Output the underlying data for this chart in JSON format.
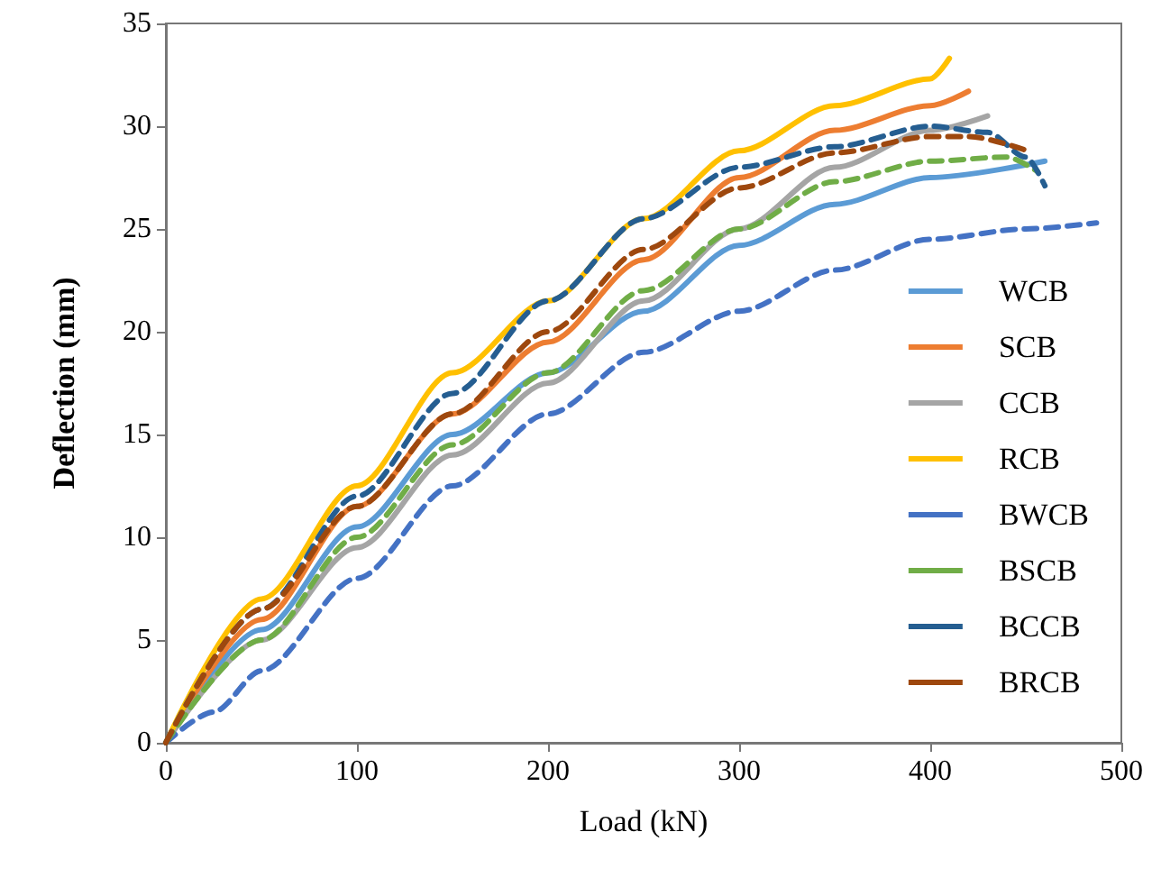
{
  "chart_data": {
    "type": "line",
    "xlabel": "Load (kN)",
    "ylabel": "Deflection (mm)",
    "xlim": [
      0,
      500
    ],
    "xticks": [
      0,
      100,
      200,
      300,
      400,
      500
    ],
    "ylim": [
      0,
      35
    ],
    "yticks": [
      0,
      5,
      10,
      15,
      20,
      25,
      30,
      35
    ],
    "grid": false,
    "legend": "bottom right",
    "marker": "none",
    "series": [
      {
        "name": "WCB",
        "color": "#5b9bd5",
        "line_style": "solid",
        "x": [
          0,
          50,
          100,
          150,
          200,
          250,
          300,
          350,
          400,
          460
        ],
        "values": [
          0,
          5.5,
          10.5,
          15,
          18,
          21,
          24.2,
          26.2,
          27.5,
          28.3
        ]
      },
      {
        "name": "SCB",
        "color": "#ed7d31",
        "line_style": "solid",
        "x": [
          0,
          50,
          100,
          150,
          200,
          250,
          300,
          350,
          400,
          420
        ],
        "values": [
          0,
          6,
          11.5,
          16,
          19.5,
          23.5,
          27.5,
          29.8,
          31,
          31.7
        ]
      },
      {
        "name": "CCB",
        "color": "#a5a5a5",
        "line_style": "solid",
        "x": [
          0,
          50,
          100,
          150,
          200,
          250,
          300,
          350,
          400,
          430
        ],
        "values": [
          0,
          5,
          9.5,
          14,
          17.5,
          21.5,
          25,
          28,
          29.8,
          30.5
        ]
      },
      {
        "name": "RCB",
        "color": "#ffc000",
        "line_style": "solid",
        "x": [
          0,
          50,
          100,
          150,
          200,
          250,
          300,
          350,
          400,
          410
        ],
        "values": [
          0,
          7,
          12.5,
          18,
          21.5,
          25.5,
          28.8,
          31,
          32.3,
          33.3
        ]
      },
      {
        "name": "BWCB",
        "color": "#4472c4",
        "line_style": "dashed",
        "x": [
          0,
          25,
          50,
          100,
          150,
          200,
          250,
          300,
          350,
          400,
          450,
          487
        ],
        "values": [
          0,
          1.5,
          3.5,
          8,
          12.5,
          16,
          19,
          21,
          23,
          24.5,
          25,
          25.3
        ]
      },
      {
        "name": "BSCB",
        "color": "#70ad47",
        "line_style": "dashed",
        "x": [
          0,
          50,
          100,
          150,
          200,
          250,
          300,
          350,
          400,
          440,
          456
        ],
        "values": [
          0,
          5,
          10,
          14.5,
          18,
          22,
          25,
          27.3,
          28.3,
          28.5,
          27.8
        ]
      },
      {
        "name": "BCCB",
        "color": "#255e91",
        "line_style": "dashed",
        "x": [
          0,
          50,
          100,
          150,
          200,
          250,
          300,
          350,
          400,
          430,
          450,
          460
        ],
        "values": [
          0,
          6.5,
          12,
          17,
          21.5,
          25.5,
          28,
          29,
          30,
          29.7,
          28.5,
          27.1
        ]
      },
      {
        "name": "BRCB",
        "color": "#9e480e",
        "line_style": "dashed",
        "x": [
          0,
          50,
          100,
          150,
          200,
          250,
          300,
          350,
          400,
          420,
          451
        ],
        "values": [
          0,
          6.5,
          11.5,
          16,
          20,
          24,
          27,
          28.7,
          29.5,
          29.5,
          28.8
        ]
      }
    ]
  }
}
